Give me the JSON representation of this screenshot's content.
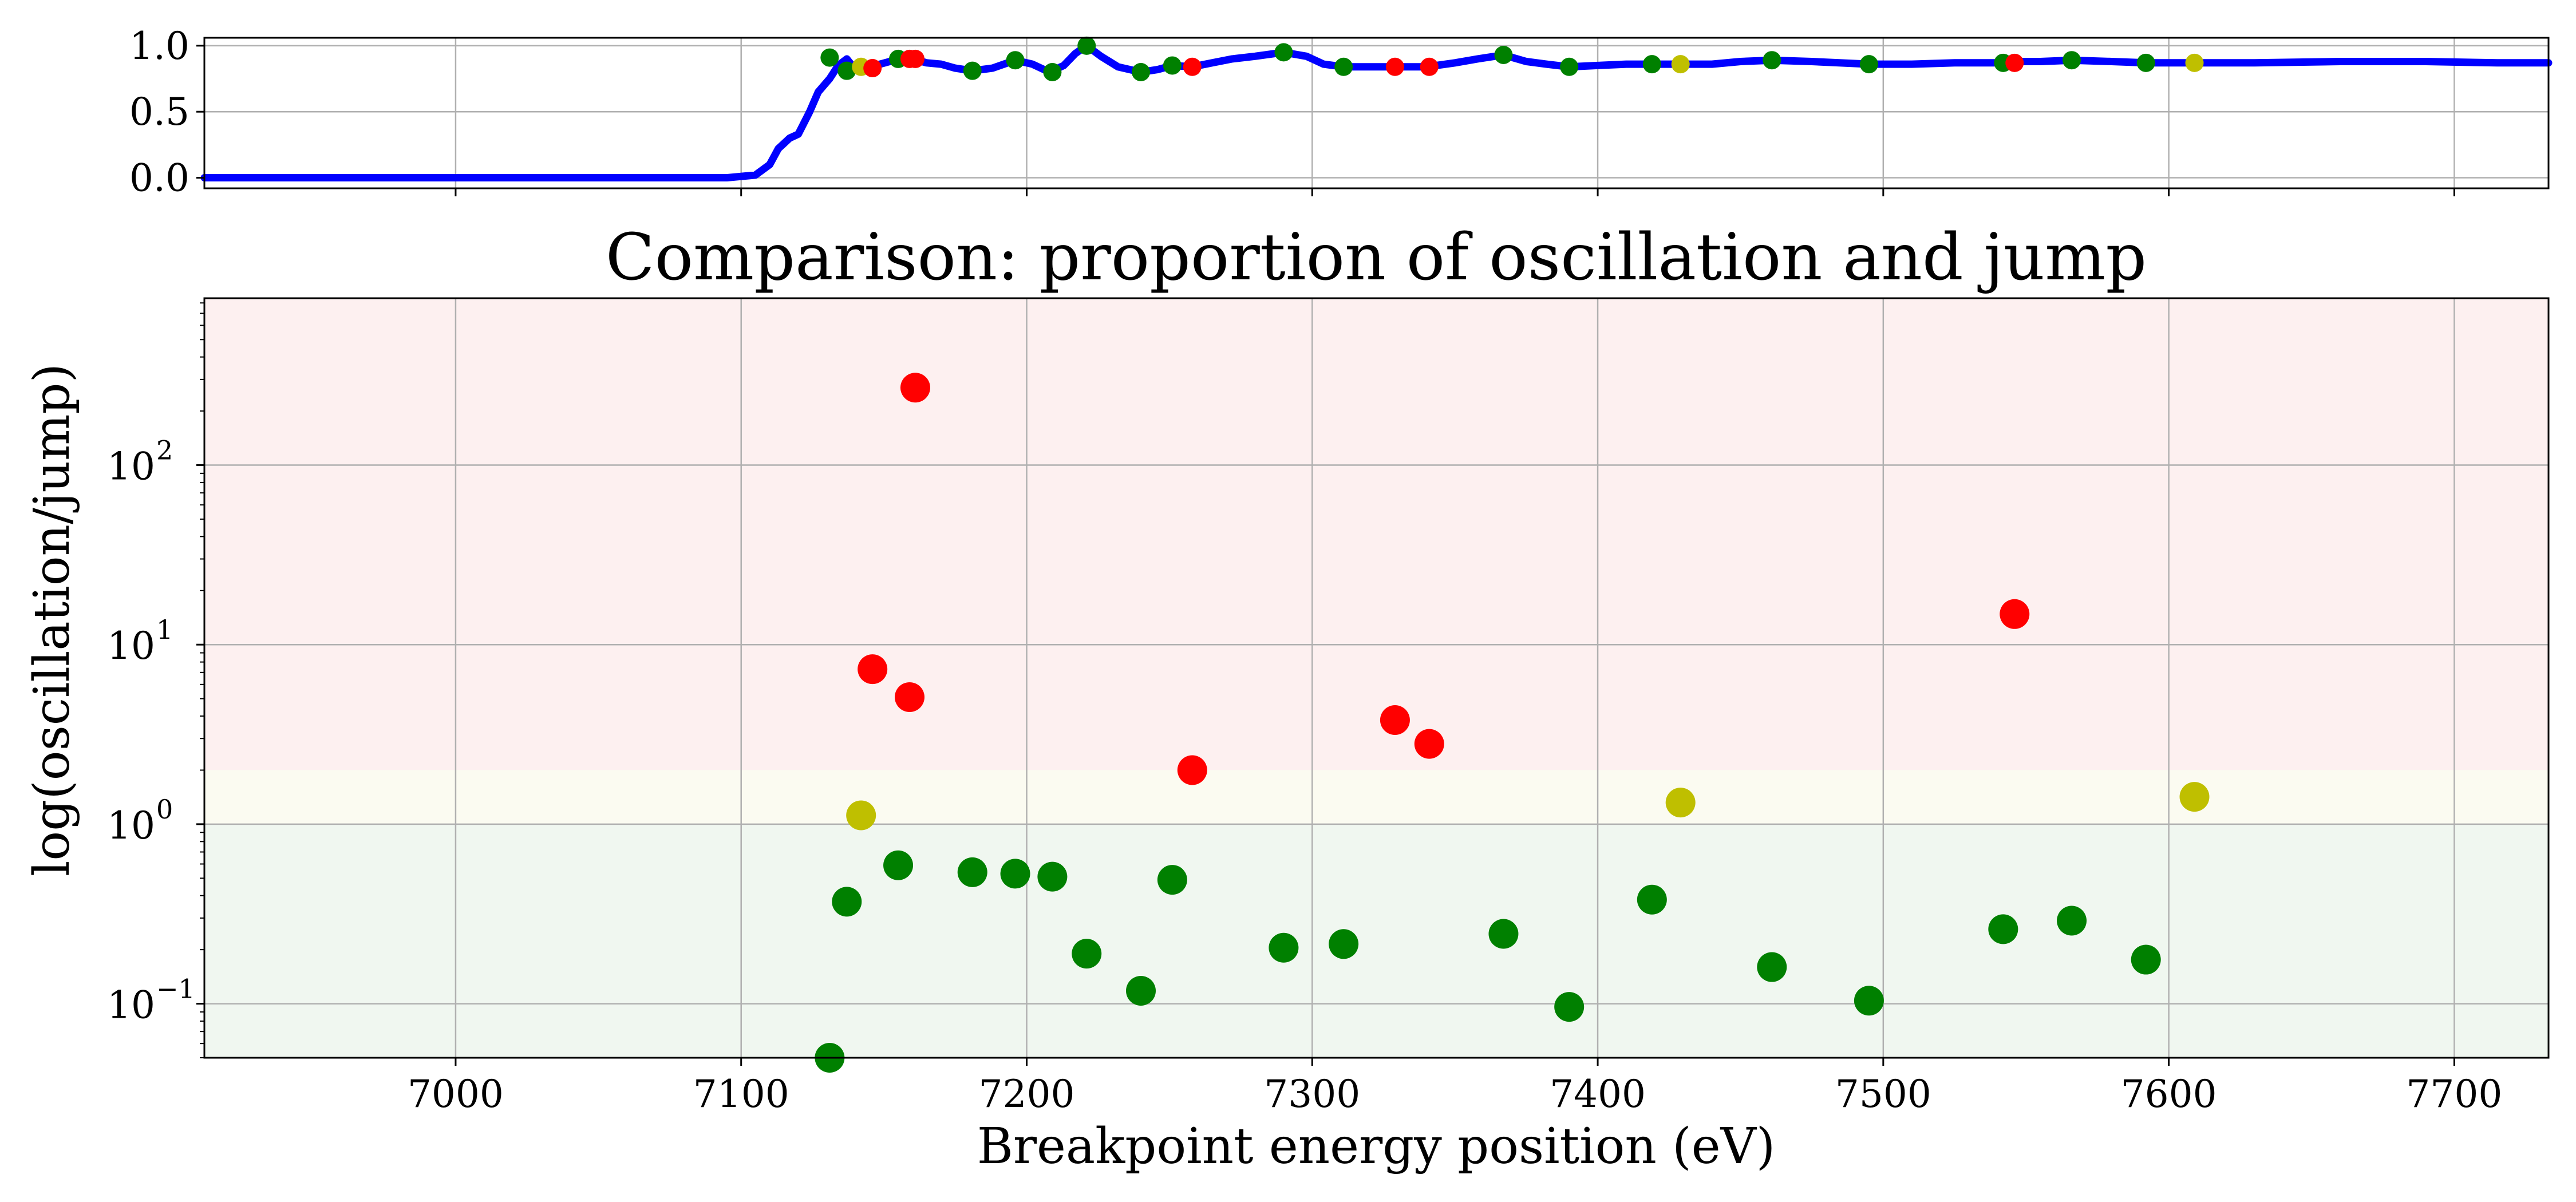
{
  "chart_data": [
    {
      "type": "line",
      "title": "",
      "xlabel": "",
      "ylabel": "",
      "xlim": [
        6912,
        7733
      ],
      "ylim": [
        -0.08,
        1.06
      ],
      "yticks": [
        0.0,
        0.5,
        1.0
      ],
      "ytick_labels": [
        "0.0",
        "0.5",
        "1.0"
      ],
      "xticks": [
        7000,
        7100,
        7200,
        7300,
        7400,
        7500,
        7600,
        7700
      ],
      "grid": true,
      "line_color": "#0000ff",
      "curve": {
        "x": [
          6912,
          6950,
          7000,
          7050,
          7080,
          7095,
          7105,
          7110,
          7113,
          7117,
          7120,
          7124,
          7127,
          7131,
          7134,
          7137,
          7140,
          7143,
          7147,
          7152,
          7155,
          7160,
          7165,
          7170,
          7175,
          7181,
          7188,
          7196,
          7202,
          7208,
          7213,
          7217,
          7221,
          7226,
          7232,
          7240,
          7246,
          7251,
          7258,
          7265,
          7272,
          7280,
          7290,
          7298,
          7304,
          7311,
          7320,
          7329,
          7340,
          7350,
          7358,
          7367,
          7375,
          7382,
          7390,
          7400,
          7410,
          7419,
          7429,
          7440,
          7450,
          7461,
          7475,
          7495,
          7510,
          7525,
          7542,
          7547,
          7555,
          7566,
          7580,
          7592,
          7608,
          7630,
          7660,
          7690,
          7715,
          7733
        ],
        "y": [
          0.0,
          0.0,
          0.0,
          0.0,
          0.0,
          0.0,
          0.02,
          0.1,
          0.22,
          0.3,
          0.33,
          0.5,
          0.65,
          0.75,
          0.85,
          0.9,
          0.82,
          0.85,
          0.85,
          0.88,
          0.9,
          0.9,
          0.87,
          0.86,
          0.83,
          0.81,
          0.83,
          0.89,
          0.86,
          0.8,
          0.85,
          0.94,
          1.0,
          0.92,
          0.84,
          0.8,
          0.82,
          0.85,
          0.84,
          0.87,
          0.9,
          0.92,
          0.95,
          0.92,
          0.86,
          0.84,
          0.84,
          0.84,
          0.84,
          0.87,
          0.9,
          0.93,
          0.88,
          0.86,
          0.84,
          0.85,
          0.86,
          0.86,
          0.86,
          0.86,
          0.88,
          0.89,
          0.88,
          0.86,
          0.86,
          0.87,
          0.87,
          0.88,
          0.88,
          0.89,
          0.88,
          0.87,
          0.87,
          0.87,
          0.88,
          0.88,
          0.87,
          0.87
        ]
      },
      "markers": [
        {
          "x": 7131,
          "y": 0.91,
          "color": "#008000"
        },
        {
          "x": 7137,
          "y": 0.81,
          "color": "#008000"
        },
        {
          "x": 7142,
          "y": 0.84,
          "color": "#bfbf00"
        },
        {
          "x": 7146,
          "y": 0.83,
          "color": "#ff0000"
        },
        {
          "x": 7155,
          "y": 0.9,
          "color": "#008000"
        },
        {
          "x": 7159,
          "y": 0.9,
          "color": "#ff0000"
        },
        {
          "x": 7161,
          "y": 0.9,
          "color": "#ff0000"
        },
        {
          "x": 7181,
          "y": 0.81,
          "color": "#008000"
        },
        {
          "x": 7196,
          "y": 0.89,
          "color": "#008000"
        },
        {
          "x": 7209,
          "y": 0.8,
          "color": "#008000"
        },
        {
          "x": 7221,
          "y": 1.0,
          "color": "#008000"
        },
        {
          "x": 7240,
          "y": 0.8,
          "color": "#008000"
        },
        {
          "x": 7251,
          "y": 0.85,
          "color": "#008000"
        },
        {
          "x": 7258,
          "y": 0.84,
          "color": "#ff0000"
        },
        {
          "x": 7290,
          "y": 0.95,
          "color": "#008000"
        },
        {
          "x": 7311,
          "y": 0.84,
          "color": "#008000"
        },
        {
          "x": 7329,
          "y": 0.84,
          "color": "#ff0000"
        },
        {
          "x": 7341,
          "y": 0.84,
          "color": "#ff0000"
        },
        {
          "x": 7367,
          "y": 0.93,
          "color": "#008000"
        },
        {
          "x": 7390,
          "y": 0.84,
          "color": "#008000"
        },
        {
          "x": 7419,
          "y": 0.86,
          "color": "#008000"
        },
        {
          "x": 7429,
          "y": 0.86,
          "color": "#bfbf00"
        },
        {
          "x": 7461,
          "y": 0.89,
          "color": "#008000"
        },
        {
          "x": 7495,
          "y": 0.86,
          "color": "#008000"
        },
        {
          "x": 7542,
          "y": 0.87,
          "color": "#008000"
        },
        {
          "x": 7546,
          "y": 0.87,
          "color": "#ff0000"
        },
        {
          "x": 7566,
          "y": 0.89,
          "color": "#008000"
        },
        {
          "x": 7592,
          "y": 0.87,
          "color": "#008000"
        },
        {
          "x": 7609,
          "y": 0.87,
          "color": "#bfbf00"
        }
      ]
    },
    {
      "type": "scatter",
      "title": "Comparison: proportion of oscillation and jump",
      "xlabel": "Breakpoint energy position (eV)",
      "ylabel": "log(oscillation/jump)",
      "xlim": [
        6912,
        7733
      ],
      "ylim": [
        0.05,
        850
      ],
      "yscale": "log",
      "yticks": [
        0.1,
        1,
        10,
        100
      ],
      "ytick_labels": [
        "10",
        "10",
        "10",
        "10"
      ],
      "ytick_exponents": [
        "−1",
        "0",
        "1",
        "2"
      ],
      "xticks": [
        7000,
        7100,
        7200,
        7300,
        7400,
        7500,
        7600,
        7700
      ],
      "xtick_labels": [
        "7000",
        "7100",
        "7200",
        "7300",
        "7400",
        "7500",
        "7600",
        "7700"
      ],
      "grid": true,
      "bands": [
        {
          "from": 2,
          "to": 850,
          "color": "#fdf0f0"
        },
        {
          "from": 1,
          "to": 2,
          "color": "#fbfbf1"
        },
        {
          "from": 0.05,
          "to": 1,
          "color": "#f0f7f0"
        }
      ],
      "points": [
        {
          "x": 7131,
          "y": 0.05,
          "color": "#008000"
        },
        {
          "x": 7137,
          "y": 0.37,
          "color": "#008000"
        },
        {
          "x": 7142,
          "y": 1.12,
          "color": "#bfbf00"
        },
        {
          "x": 7146,
          "y": 7.3,
          "color": "#ff0000"
        },
        {
          "x": 7155,
          "y": 0.59,
          "color": "#008000"
        },
        {
          "x": 7159,
          "y": 5.1,
          "color": "#ff0000"
        },
        {
          "x": 7161,
          "y": 270,
          "color": "#ff0000"
        },
        {
          "x": 7181,
          "y": 0.54,
          "color": "#008000"
        },
        {
          "x": 7196,
          "y": 0.53,
          "color": "#008000"
        },
        {
          "x": 7209,
          "y": 0.51,
          "color": "#008000"
        },
        {
          "x": 7221,
          "y": 0.19,
          "color": "#008000"
        },
        {
          "x": 7240,
          "y": 0.118,
          "color": "#008000"
        },
        {
          "x": 7251,
          "y": 0.49,
          "color": "#008000"
        },
        {
          "x": 7258,
          "y": 2.0,
          "color": "#ff0000"
        },
        {
          "x": 7290,
          "y": 0.205,
          "color": "#008000"
        },
        {
          "x": 7311,
          "y": 0.215,
          "color": "#008000"
        },
        {
          "x": 7329,
          "y": 3.8,
          "color": "#ff0000"
        },
        {
          "x": 7341,
          "y": 2.8,
          "color": "#ff0000"
        },
        {
          "x": 7367,
          "y": 0.245,
          "color": "#008000"
        },
        {
          "x": 7390,
          "y": 0.096,
          "color": "#008000"
        },
        {
          "x": 7419,
          "y": 0.38,
          "color": "#008000"
        },
        {
          "x": 7429,
          "y": 1.32,
          "color": "#bfbf00"
        },
        {
          "x": 7461,
          "y": 0.16,
          "color": "#008000"
        },
        {
          "x": 7495,
          "y": 0.104,
          "color": "#008000"
        },
        {
          "x": 7542,
          "y": 0.26,
          "color": "#008000"
        },
        {
          "x": 7546,
          "y": 14.8,
          "color": "#ff0000"
        },
        {
          "x": 7566,
          "y": 0.29,
          "color": "#008000"
        },
        {
          "x": 7592,
          "y": 0.176,
          "color": "#008000"
        },
        {
          "x": 7609,
          "y": 1.42,
          "color": "#bfbf00"
        }
      ]
    }
  ]
}
